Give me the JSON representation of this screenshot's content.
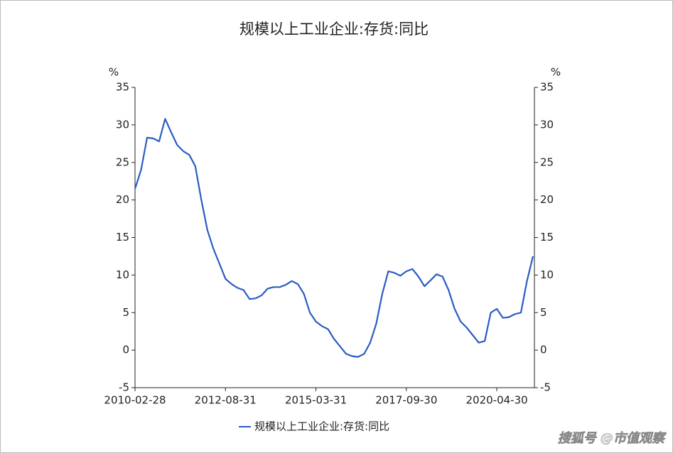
{
  "chart_data": {
    "type": "line",
    "title": "规模以上工业企业:存货:同比",
    "y_label": "%",
    "y2_label": "%",
    "watermark": "搜狐号 @市值观察",
    "categories": [
      "2010-02-28",
      null,
      null,
      null,
      null,
      null,
      null,
      null,
      null,
      null,
      null,
      null,
      null,
      null,
      null,
      "2012-08-31",
      null,
      null,
      null,
      null,
      null,
      null,
      null,
      null,
      null,
      null,
      null,
      null,
      null,
      null,
      "2015-03-31",
      null,
      null,
      null,
      null,
      null,
      null,
      null,
      null,
      null,
      null,
      null,
      null,
      null,
      null,
      "2017-09-30",
      null,
      null,
      null,
      null,
      null,
      null,
      null,
      null,
      null,
      null,
      null,
      null,
      null,
      null,
      "2020-04-30",
      null,
      null,
      null,
      null,
      null,
      null
    ],
    "series": [
      {
        "name": "规模以上工业企业:存货:同比",
        "color": "#2a5cc4",
        "values": [
          21.5,
          24,
          28.3,
          28.2,
          27.8,
          30.8,
          29,
          27.3,
          26.5,
          26,
          24.5,
          20,
          16,
          13.5,
          11.5,
          9.5,
          8.8,
          8.3,
          8,
          6.8,
          6.9,
          7.3,
          8.2,
          8.4,
          8.4,
          8.7,
          9.2,
          8.8,
          7.5,
          5,
          3.8,
          3.2,
          2.8,
          1.5,
          0.5,
          -0.5,
          -0.8,
          -0.9,
          -0.5,
          1,
          3.5,
          7.5,
          10.5,
          10.3,
          9.9,
          10.5,
          10.8,
          9.8,
          8.5,
          9.3,
          10.1,
          9.8,
          8,
          5.5,
          3.8,
          3,
          2,
          1,
          1.2,
          5,
          5.5,
          4.3,
          4.4,
          4.8,
          5,
          9.2,
          12.5
        ]
      }
    ],
    "ylim": [
      -5,
      35
    ],
    "yticks": [
      -5,
      0,
      5,
      10,
      15,
      20,
      25,
      30,
      35
    ],
    "y2lim": [
      -5,
      35
    ],
    "y2ticks": [
      -5,
      0,
      5,
      10,
      15,
      20,
      25,
      30,
      35
    ],
    "legend": "bottom"
  }
}
